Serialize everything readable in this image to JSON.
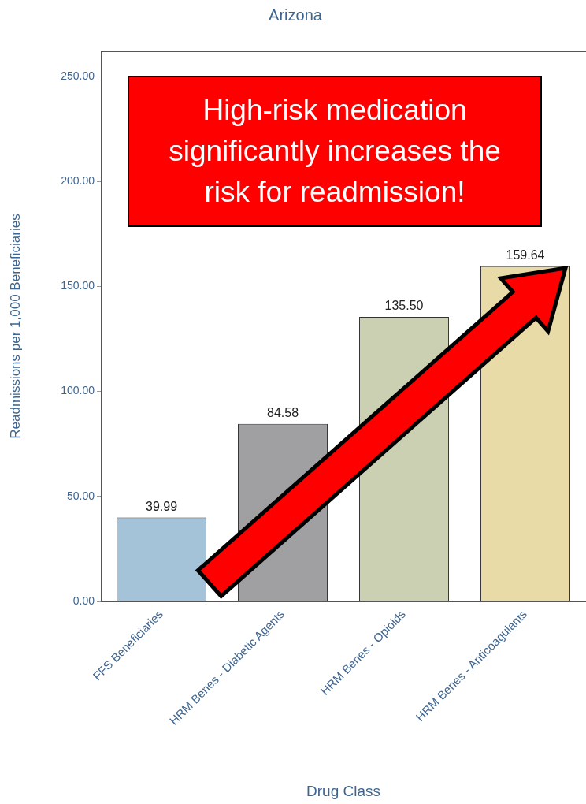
{
  "chart_data": {
    "type": "bar",
    "title": "Arizona",
    "xlabel": "Drug Class",
    "ylabel": "Readmissions per 1,000 Beneficiaries",
    "categories": [
      "FFS Beneficiaries",
      "HRM Benes - Diabetic Agents",
      "HRM Benes - Opioids",
      "HRM Benes - Anticoagulants"
    ],
    "values": [
      39.99,
      84.58,
      135.5,
      159.64
    ],
    "colors": [
      "#a4c2d8",
      "#a0a0a3",
      "#cbd0b2",
      "#e9dba7"
    ],
    "value_labels": [
      "39.99",
      "84.58",
      "135.50",
      "159.64"
    ],
    "ylim": [
      0,
      262
    ],
    "yticks": [
      {
        "value": 0,
        "label": "0.00"
      },
      {
        "value": 50,
        "label": "50.00"
      },
      {
        "value": 100,
        "label": "100.00"
      },
      {
        "value": 150,
        "label": "150.00"
      },
      {
        "value": 200,
        "label": "200.00"
      },
      {
        "value": 250,
        "label": "250.00"
      }
    ],
    "grid": false,
    "legend": false,
    "annotations": [
      "High-risk medication significantly increases the risk for readmission!"
    ]
  }
}
